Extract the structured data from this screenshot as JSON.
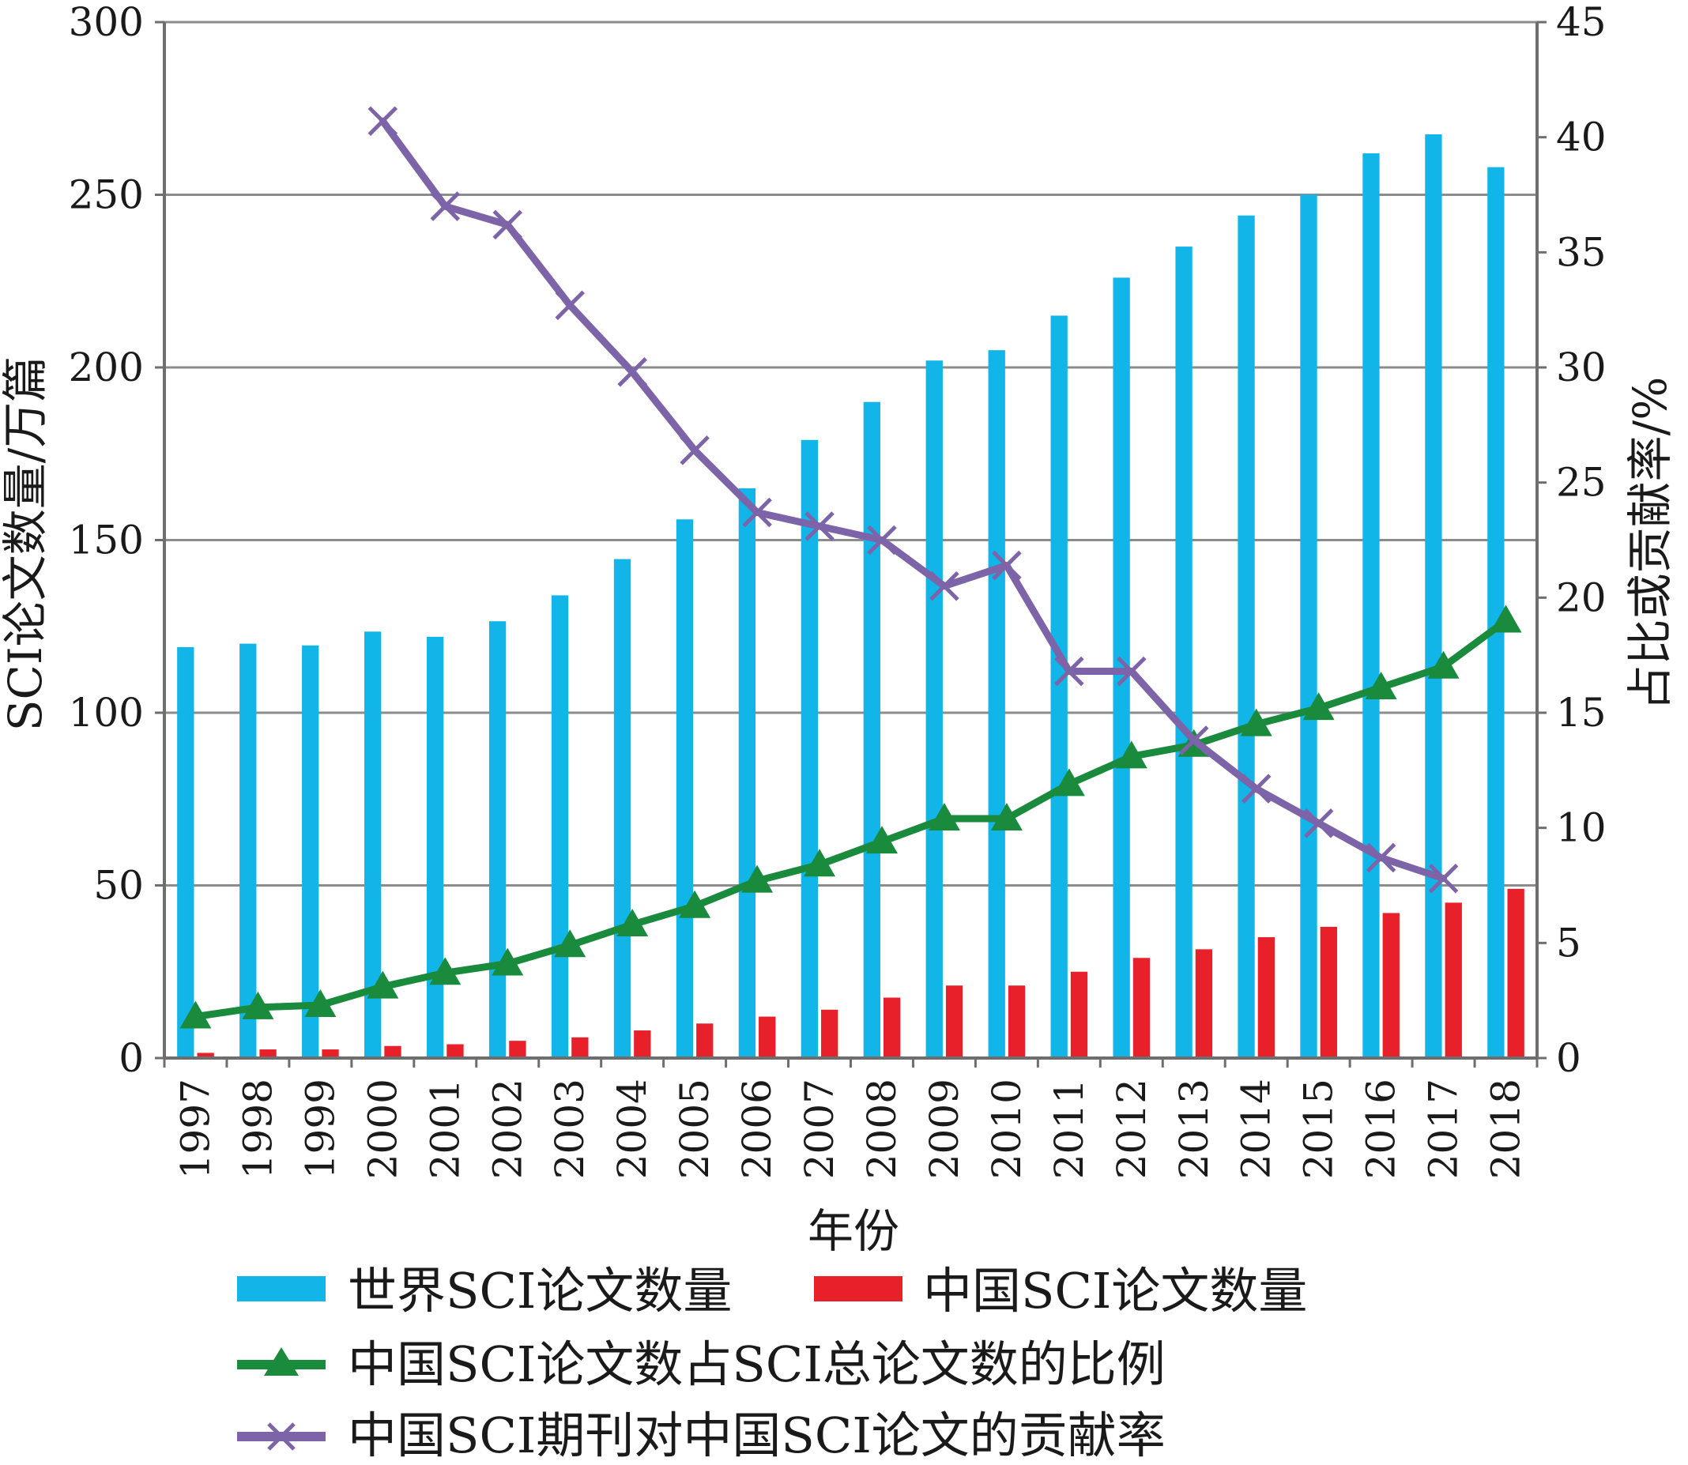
{
  "chart_data": {
    "type": "bar",
    "categories": [
      "1997",
      "1998",
      "1999",
      "2000",
      "2001",
      "2002",
      "2003",
      "2004",
      "2005",
      "2006",
      "2007",
      "2008",
      "2009",
      "2010",
      "2011",
      "2012",
      "2013",
      "2014",
      "2015",
      "2016",
      "2017",
      "2018"
    ],
    "xlabel": "年份",
    "ylabel_left": "SCI论文数量/万篇",
    "ylabel_right": "占比或贡献率/%",
    "ylim_left": [
      0,
      300
    ],
    "ylim_right": [
      0,
      45
    ],
    "yticks_left": [
      "0",
      "50",
      "100",
      "150",
      "200",
      "250",
      "300"
    ],
    "yticks_right": [
      "0",
      "5",
      "10",
      "15",
      "20",
      "25",
      "30",
      "35",
      "40",
      "45"
    ],
    "grid": "horizontal",
    "legend_position": "bottom",
    "series": [
      {
        "name": "世界SCI论文数量",
        "kind": "bar",
        "axis": "left",
        "color": "#12b5e8",
        "values": [
          119,
          120,
          119.5,
          123.5,
          122,
          126.5,
          134,
          144.5,
          156,
          165,
          179,
          190,
          202,
          205,
          215,
          226,
          235,
          244,
          250,
          262,
          267.5,
          258
        ]
      },
      {
        "name": "中国SCI论文数量",
        "kind": "bar",
        "axis": "left",
        "color": "#e8202a",
        "values": [
          1.5,
          2.5,
          2.5,
          3.5,
          4,
          5,
          6,
          8,
          10,
          12,
          14,
          17.5,
          21,
          21,
          25,
          29,
          31.5,
          35,
          38,
          42,
          45,
          49
        ]
      },
      {
        "name": "中国SCI论文数占SCI总论文数的比例",
        "kind": "line",
        "axis": "right",
        "marker": "triangle",
        "color": "#1a8a3c",
        "values": [
          1.8,
          2.2,
          2.3,
          3.1,
          3.7,
          4.1,
          4.9,
          5.8,
          6.6,
          7.7,
          8.4,
          9.4,
          10.4,
          10.4,
          11.9,
          13.1,
          13.6,
          14.5,
          15.2,
          16.1,
          17.0,
          19.0
        ]
      },
      {
        "name": "中国SCI期刊对中国SCI论文的贡献率",
        "kind": "line",
        "axis": "right",
        "marker": "x",
        "color": "#7d63a8",
        "values": [
          null,
          null,
          null,
          40.7,
          37.0,
          36.2,
          32.7,
          29.8,
          26.4,
          23.7,
          23.1,
          22.5,
          20.5,
          21.4,
          16.8,
          16.8,
          13.8,
          11.7,
          10.2,
          8.7,
          7.8,
          null
        ]
      }
    ]
  }
}
